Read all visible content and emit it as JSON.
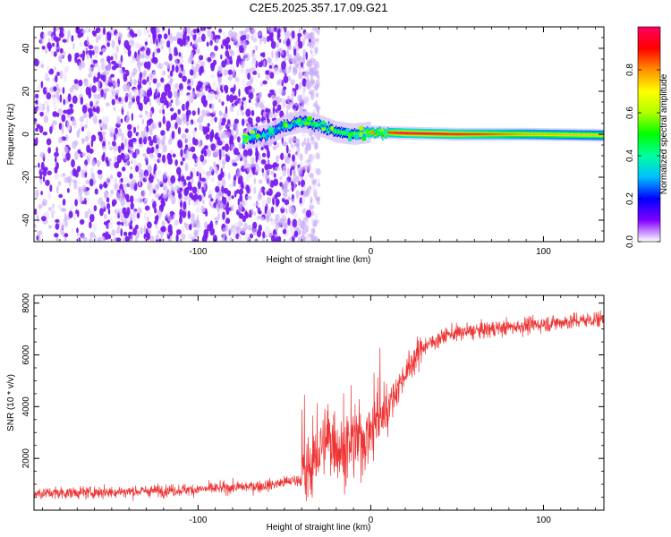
{
  "title": "C2E5.2025.357.17.09.G21",
  "chart_data": [
    {
      "type": "heatmap",
      "xlabel": "Height of straight line (km)",
      "ylabel": "Frequency (Hz)",
      "xlim": [
        -195,
        135
      ],
      "ylim": [
        -50,
        50
      ],
      "xticks": [
        -100,
        0,
        100
      ],
      "yticks": [
        -40,
        -20,
        0,
        20,
        40
      ],
      "xtick_labels": [
        "-100",
        "0",
        "100"
      ],
      "ytick_labels": [
        "-40",
        "-20",
        "0",
        "20",
        "40"
      ],
      "colorbar": {
        "label": "Normalized spectral amplitude",
        "range": [
          0,
          1
        ],
        "ticks": [
          0,
          0.2,
          0.4,
          0.6,
          0.8
        ],
        "tick_labels": [
          "0.0",
          "0.2",
          "0.4",
          "0.6",
          "0.8"
        ]
      },
      "signal_track": [
        {
          "x": -72,
          "freq": -2,
          "amp": 0.35
        },
        {
          "x": -60,
          "freq": 0,
          "amp": 0.4
        },
        {
          "x": -50,
          "freq": 4,
          "amp": 0.45
        },
        {
          "x": -40,
          "freq": 6,
          "amp": 0.45
        },
        {
          "x": -30,
          "freq": 4,
          "amp": 0.5
        },
        {
          "x": -20,
          "freq": 1,
          "amp": 0.55
        },
        {
          "x": -10,
          "freq": 0,
          "amp": 0.6
        },
        {
          "x": 0,
          "freq": 1,
          "amp": 0.85
        },
        {
          "x": 20,
          "freq": 0.5,
          "amp": 1.0
        },
        {
          "x": 50,
          "freq": 0,
          "amp": 0.95
        },
        {
          "x": 90,
          "freq": 0,
          "amp": 0.8
        },
        {
          "x": 135,
          "freq": -0.5,
          "amp": 0.75
        }
      ]
    },
    {
      "type": "line",
      "xlabel": "Height of straight line (km)",
      "ylabel": "SNR (10 * v/v)",
      "xlim": [
        -195,
        135
      ],
      "ylim": [
        0,
        8300
      ],
      "xticks": [
        -100,
        0,
        100
      ],
      "yticks": [
        2000,
        4000,
        6000,
        8000
      ],
      "xtick_labels": [
        "-100",
        "0",
        "100"
      ],
      "ytick_labels": [
        "2000",
        "4000",
        "6000",
        "8000"
      ],
      "color": "#ee3333",
      "trend": [
        {
          "x": -195,
          "y": 650
        },
        {
          "x": -150,
          "y": 700
        },
        {
          "x": -100,
          "y": 800
        },
        {
          "x": -60,
          "y": 950
        },
        {
          "x": -40,
          "y": 1200
        },
        {
          "x": -32,
          "y": 2000
        },
        {
          "x": -25,
          "y": 2800
        },
        {
          "x": -15,
          "y": 2300
        },
        {
          "x": -8,
          "y": 2600
        },
        {
          "x": 0,
          "y": 3000
        },
        {
          "x": 10,
          "y": 4000
        },
        {
          "x": 20,
          "y": 5300
        },
        {
          "x": 30,
          "y": 6300
        },
        {
          "x": 45,
          "y": 6800
        },
        {
          "x": 70,
          "y": 7000
        },
        {
          "x": 100,
          "y": 7200
        },
        {
          "x": 135,
          "y": 7400
        }
      ]
    }
  ]
}
